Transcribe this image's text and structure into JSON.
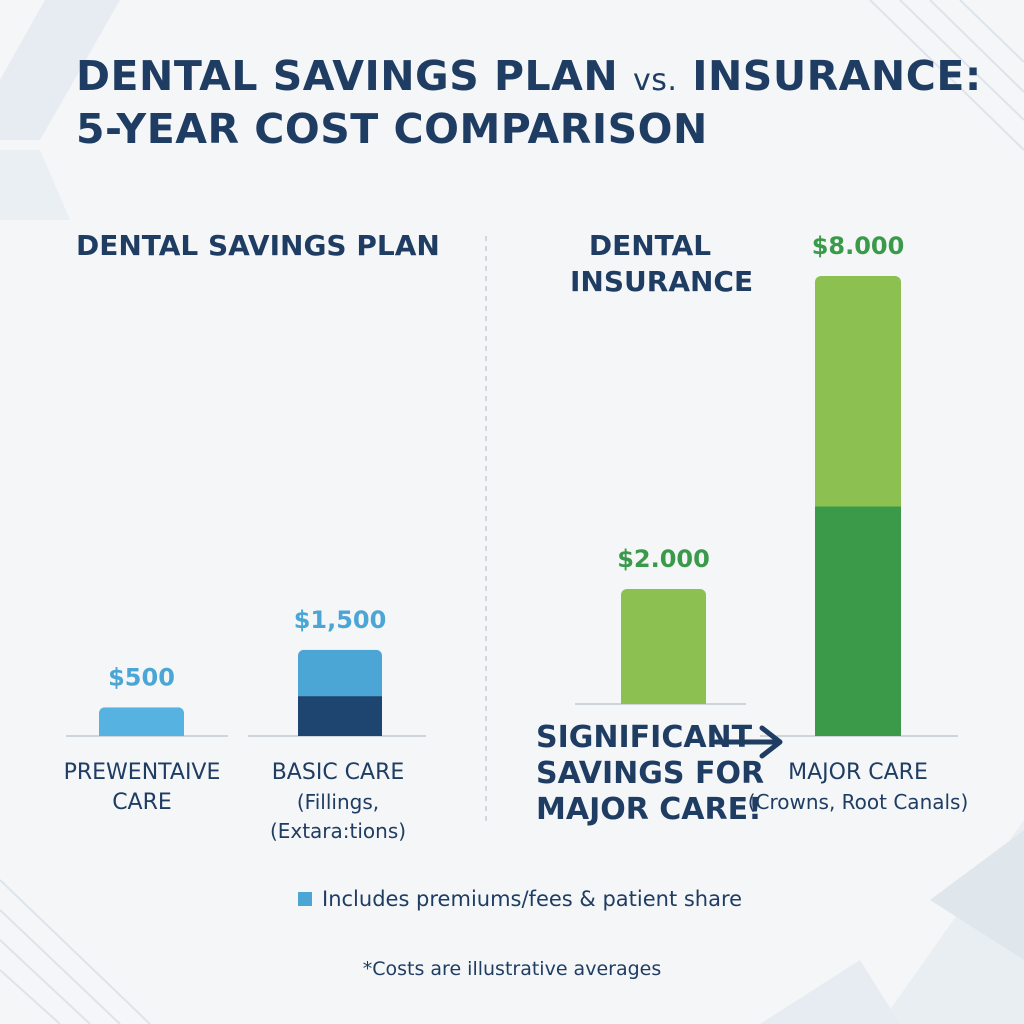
{
  "title": {
    "line1_a": "DENTAL SAVINGS PLAN",
    "line1_vs": "vs.",
    "line1_b": "INSURANCE:",
    "line2": "5-YEAR COST COMPARISON"
  },
  "panels": {
    "left_title": "DENTAL SAVINGS PLAN",
    "right_title_1": "DENTAL",
    "right_title_2": "INSURANCE"
  },
  "callout": {
    "line1": "SIGNIFICANT",
    "line2": "SAVINGS FOR",
    "line3": "MAJOR CARE!"
  },
  "legend": {
    "label": "Includes premiums/fees & patient share"
  },
  "footnote": "*Costs are illustrative averages",
  "colors": {
    "title": "#1f3d63",
    "plan_light": "#4ba6d6",
    "plan_preventive": "#56b2e0",
    "plan_dark": "#1e4570",
    "ins_light": "#8cc152",
    "ins_dark": "#3a9a4a",
    "plan_value_text": "#4ba6d6",
    "ins_value_text": "#3a9a4a"
  },
  "chart_data": {
    "type": "bar",
    "stacked": true,
    "ylim": [
      0,
      8000
    ],
    "grid": false,
    "legend_placement": "bottom",
    "bars": [
      {
        "group": "DENTAL SAVINGS PLAN",
        "label_lines": [
          "PREWENTAIVE",
          "CARE"
        ],
        "value_label": "$500",
        "total": 500,
        "segments": [
          {
            "value": 500,
            "color": "#56b2e0"
          }
        ]
      },
      {
        "group": "DENTAL SAVINGS PLAN",
        "label_lines": [
          "BASIC CARE",
          "(Fillings,",
          "(Extara:tions)"
        ],
        "value_label": "$1,500",
        "total": 1500,
        "segments": [
          {
            "value": 700,
            "color": "#1e4570"
          },
          {
            "value": 800,
            "color": "#4ba6d6"
          }
        ]
      },
      {
        "group": "DENTAL INSURANCE",
        "label_lines": [],
        "value_label": "$2.000",
        "total": 2000,
        "segments": [
          {
            "value": 2000,
            "color": "#8cc152"
          }
        ]
      },
      {
        "group": "DENTAL INSURANCE",
        "label_lines": [
          "MAJOR CARE",
          "(Crowns, Root Canals)"
        ],
        "value_label": "$8.000",
        "total": 8000,
        "segments": [
          {
            "value": 4000,
            "color": "#3a9a4a"
          },
          {
            "value": 4000,
            "color": "#8cc152"
          }
        ]
      }
    ]
  }
}
